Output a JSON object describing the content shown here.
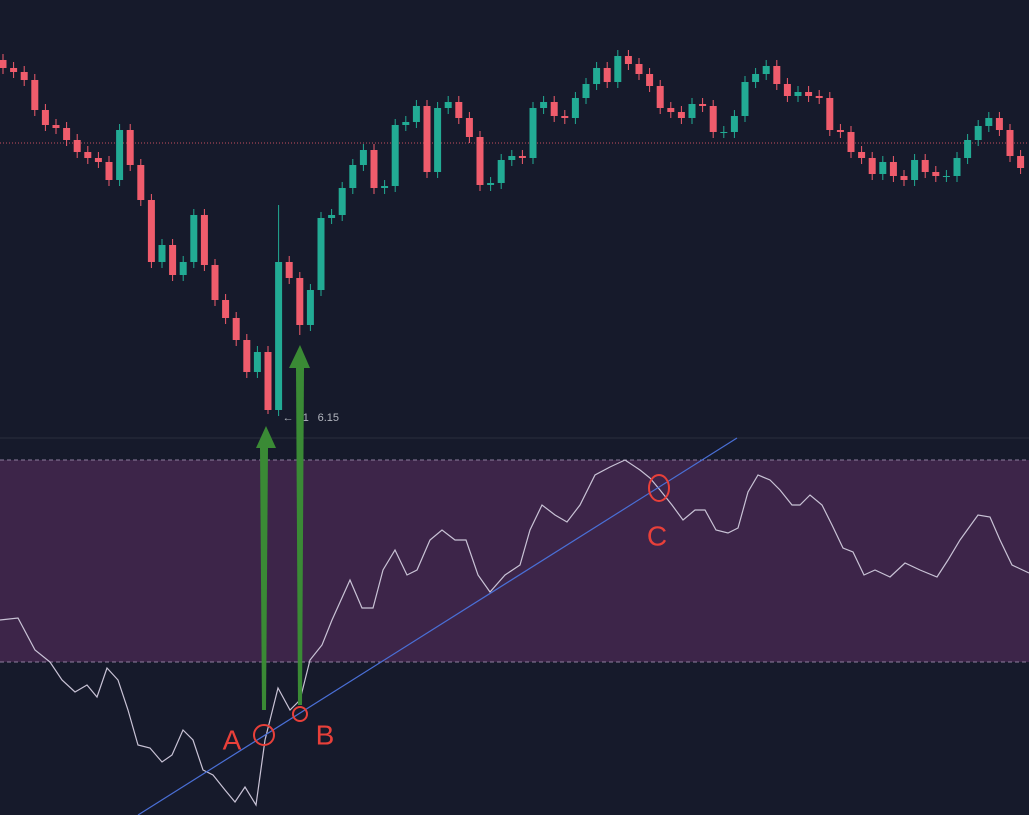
{
  "chart_data": [
    {
      "type": "candlestick",
      "open": [
        370,
        362,
        358,
        350,
        320,
        305,
        302,
        290,
        278,
        272,
        268,
        250,
        300,
        265,
        230,
        168,
        185,
        155,
        168,
        215,
        165,
        130,
        112,
        90,
        58,
        78,
        20,
        168,
        152,
        105,
        140,
        212,
        215,
        242,
        265,
        280,
        242,
        244,
        305,
        308,
        324,
        258,
        322,
        328,
        312,
        293,
        245,
        247,
        270,
        274,
        272,
        322,
        328,
        314,
        312,
        332,
        346,
        362,
        348,
        374,
        366,
        356,
        344,
        322,
        318,
        312,
        326,
        324,
        298,
        298,
        314,
        348,
        356,
        364,
        346,
        334,
        338,
        334,
        332,
        300,
        298,
        278,
        272,
        256,
        268,
        254,
        250,
        270,
        258,
        254,
        254,
        272,
        290,
        304,
        312,
        300,
        274
      ],
      "high": [
        376,
        368,
        364,
        356,
        326,
        311,
        308,
        296,
        284,
        278,
        274,
        306,
        306,
        271,
        236,
        191,
        191,
        174,
        221,
        221,
        171,
        136,
        118,
        96,
        84,
        84,
        225,
        174,
        158,
        146,
        218,
        221,
        248,
        271,
        286,
        286,
        250,
        311,
        314,
        330,
        330,
        328,
        334,
        334,
        318,
        299,
        253,
        276,
        280,
        280,
        328,
        334,
        334,
        320,
        338,
        352,
        368,
        368,
        380,
        380,
        372,
        362,
        350,
        328,
        324,
        332,
        332,
        330,
        304,
        320,
        354,
        362,
        370,
        370,
        352,
        344,
        344,
        340,
        338,
        306,
        304,
        284,
        278,
        274,
        274,
        260,
        276,
        276,
        264,
        260,
        278,
        296,
        310,
        318,
        318,
        306,
        280
      ],
      "low": [
        356,
        352,
        344,
        314,
        299,
        296,
        284,
        272,
        266,
        262,
        244,
        244,
        259,
        224,
        162,
        162,
        149,
        149,
        162,
        159,
        124,
        106,
        84,
        52,
        52,
        16,
        14,
        146,
        95,
        99,
        134,
        206,
        209,
        236,
        259,
        236,
        236,
        238,
        299,
        302,
        252,
        252,
        316,
        306,
        287,
        239,
        239,
        241,
        264,
        266,
        266,
        316,
        308,
        306,
        306,
        326,
        340,
        342,
        342,
        360,
        350,
        338,
        316,
        312,
        306,
        306,
        318,
        292,
        292,
        292,
        308,
        342,
        350,
        340,
        328,
        328,
        328,
        326,
        294,
        292,
        272,
        266,
        250,
        250,
        248,
        244,
        244,
        252,
        248,
        248,
        248,
        266,
        284,
        298,
        294,
        268,
        256
      ],
      "close": [
        362,
        358,
        350,
        320,
        305,
        302,
        290,
        278,
        272,
        268,
        250,
        300,
        265,
        230,
        168,
        185,
        155,
        168,
        215,
        165,
        130,
        112,
        90,
        58,
        78,
        20,
        168,
        152,
        105,
        140,
        212,
        215,
        242,
        265,
        280,
        242,
        244,
        305,
        308,
        324,
        258,
        322,
        328,
        312,
        293,
        245,
        247,
        270,
        274,
        272,
        322,
        328,
        314,
        312,
        332,
        346,
        362,
        348,
        374,
        366,
        356,
        344,
        322,
        318,
        312,
        326,
        324,
        298,
        298,
        314,
        348,
        356,
        364,
        346,
        334,
        338,
        334,
        332,
        300,
        298,
        278,
        272,
        256,
        268,
        254,
        250,
        270,
        258,
        254,
        254,
        272,
        290,
        304,
        312,
        300,
        274,
        262
      ],
      "up_color": "#22ab94",
      "down_color": "#f05c6c",
      "ylim": [
        0,
        430
      ],
      "price_line": 287,
      "price_label": [
        "← 31",
        "6.15"
      ]
    },
    {
      "type": "line",
      "x": [
        0,
        18,
        35,
        50,
        62,
        75,
        87,
        97,
        107,
        118,
        128,
        138,
        150,
        162,
        172,
        183,
        193,
        203,
        213,
        225,
        235,
        245,
        256,
        265,
        278,
        290,
        300,
        310,
        322,
        332,
        350,
        362,
        373,
        383,
        395,
        407,
        417,
        430,
        442,
        455,
        466,
        478,
        490,
        505,
        520,
        530,
        542,
        555,
        567,
        580,
        595,
        610,
        625,
        640,
        650,
        660,
        672,
        683,
        695,
        705,
        716,
        728,
        738,
        748,
        758,
        770,
        780,
        792,
        800,
        810,
        822,
        832,
        843,
        853,
        864,
        875,
        890,
        905,
        920,
        937,
        948,
        960,
        978,
        990,
        1000,
        1012,
        1029
      ],
      "values": [
        195,
        197,
        165,
        153,
        135,
        123,
        130,
        118,
        147,
        135,
        105,
        70,
        67,
        53,
        60,
        85,
        75,
        45,
        40,
        25,
        13,
        28,
        10,
        75,
        127,
        105,
        115,
        155,
        170,
        195,
        235,
        207,
        207,
        245,
        265,
        240,
        245,
        275,
        285,
        275,
        275,
        240,
        223,
        240,
        250,
        285,
        310,
        300,
        293,
        310,
        340,
        348,
        355,
        345,
        337,
        325,
        310,
        295,
        305,
        305,
        285,
        282,
        287,
        323,
        340,
        335,
        325,
        310,
        310,
        320,
        310,
        290,
        267,
        263,
        240,
        245,
        238,
        252,
        245,
        238,
        255,
        275,
        300,
        298,
        275,
        250,
        242
      ],
      "color": "#c9c3d6",
      "xlim": [
        0,
        1029
      ],
      "ylim": [
        0,
        377
      ],
      "bands": [
        355,
        153
      ],
      "annotations": [
        "A",
        "B",
        "C"
      ]
    }
  ]
}
